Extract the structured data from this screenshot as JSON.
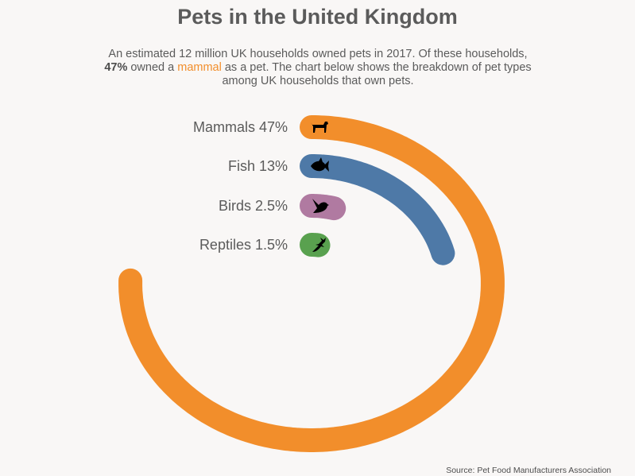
{
  "title": "Pets in the United Kingdom",
  "subtitle": {
    "part1": "An estimated 12 million UK households owned pets in 2017. Of these households, ",
    "bold": "47%",
    "part2": " owned a ",
    "highlight": "mammal",
    "part3": " as a pet. The chart below shows the breakdown of pet types among UK households that own pets."
  },
  "source": "Source: Pet Food Manufacturers Association",
  "chart_data": {
    "type": "radial-bar",
    "categories": [
      "Mammals",
      "Fish",
      "Birds",
      "Reptiles"
    ],
    "values": [
      47,
      13,
      2.5,
      1.5
    ],
    "unit": "%",
    "labels": [
      "Mammals 47%",
      "Fish 13%",
      "Birds 2.5%",
      "Reptiles 1.5%"
    ],
    "colors": [
      "#f28e2b",
      "#4e79a7",
      "#b07aa1",
      "#59a14f"
    ],
    "icons": [
      "dog-icon",
      "fish-icon",
      "bird-icon",
      "lizard-icon"
    ]
  }
}
